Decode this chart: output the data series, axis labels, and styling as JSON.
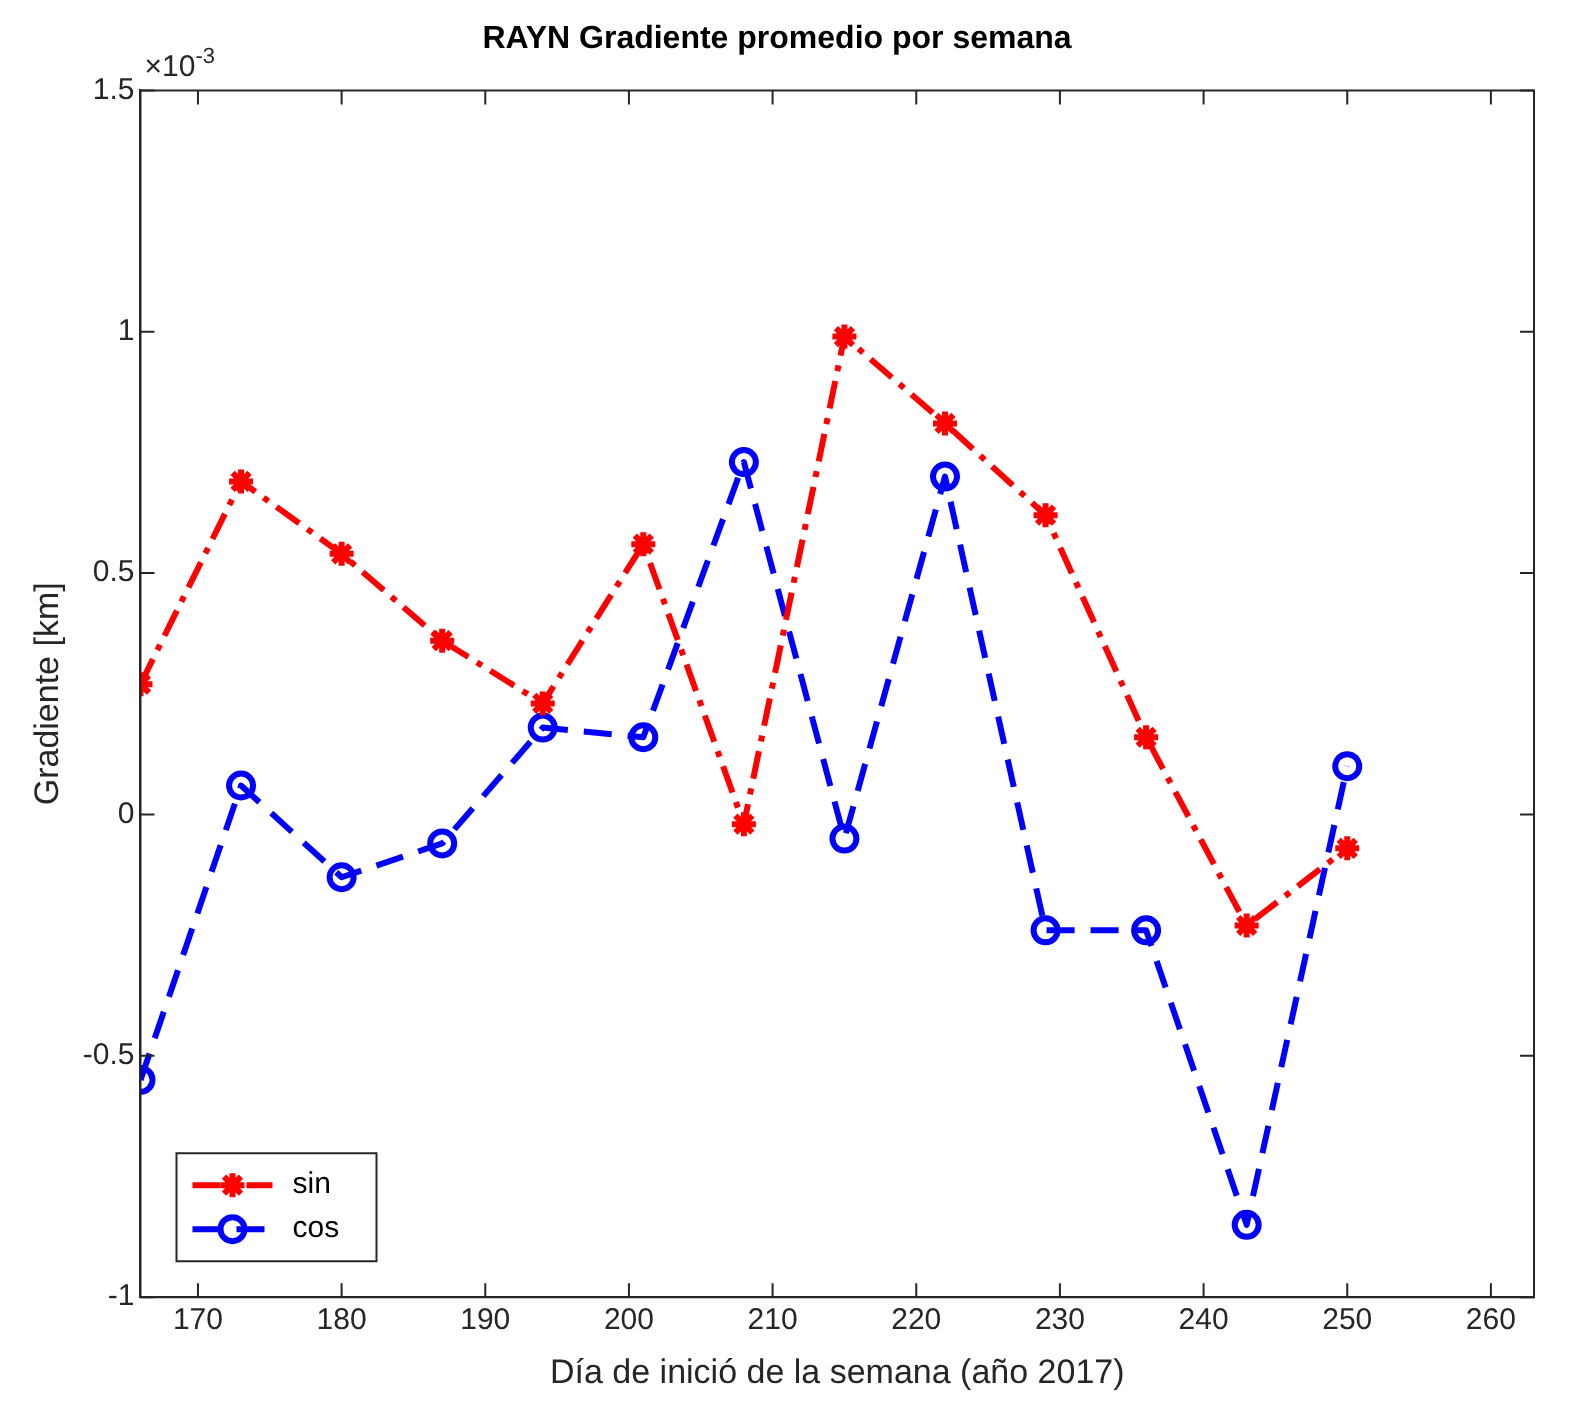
{
  "chart_data": {
    "type": "line",
    "title": "RAYN Gradiente promedio por semana",
    "xlabel": "Día de inició de la semana (año 2017)",
    "ylabel": "Gradiente [km]",
    "annotations": [
      "×10$^{-3}$"
    ],
    "x": [
      166,
      173,
      180,
      187,
      194,
      201,
      208,
      215,
      222,
      229,
      236,
      243,
      250
    ],
    "series": [
      {
        "name": "sin",
        "color": "#ff0000",
        "marker": "cross",
        "line_style": "dashdot",
        "values": [
          0.27,
          0.69,
          0.54,
          0.36,
          0.23,
          0.56,
          -0.02,
          0.99,
          0.81,
          0.62,
          0.16,
          -0.23,
          -0.07
        ]
      },
      {
        "name": "cos",
        "color": "#0000ff",
        "marker": "circle",
        "line_style": "dashed",
        "values": [
          -0.55,
          0.06,
          -0.13,
          -0.06,
          0.18,
          0.16,
          0.73,
          -0.05,
          0.7,
          -0.24,
          -0.24,
          -0.85,
          0.1
        ]
      }
    ],
    "xlim": [
      166,
      263
    ],
    "xticks": [
      170,
      180,
      190,
      200,
      210,
      220,
      230,
      240,
      250,
      260
    ],
    "ylim": [
      -1,
      1.5
    ],
    "yticks": [
      -1,
      -0.5,
      0,
      0.5,
      1,
      1.5
    ],
    "grid": false,
    "legend": "bottom left"
  }
}
